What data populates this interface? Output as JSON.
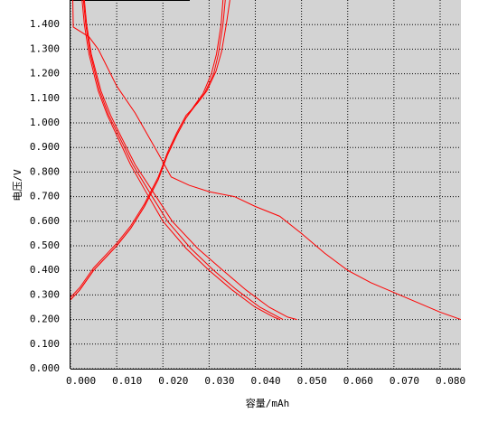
{
  "chart_data": {
    "type": "line",
    "x_label": "容量/mAh",
    "y_label": "电压/V",
    "xlim": [
      0,
      0.0845
    ],
    "ylim": [
      0,
      1.5
    ],
    "xticks": [
      {
        "value": 0,
        "label": "0.000"
      },
      {
        "value": 0.01,
        "label": "0.010"
      },
      {
        "value": 0.02,
        "label": "0.020"
      },
      {
        "value": 0.03,
        "label": "0.030"
      },
      {
        "value": 0.04,
        "label": "0.040"
      },
      {
        "value": 0.05,
        "label": "0.050"
      },
      {
        "value": 0.06,
        "label": "0.060"
      },
      {
        "value": 0.07,
        "label": "0.070"
      },
      {
        "value": 0.08,
        "label": "0.080"
      }
    ],
    "yticks": [
      {
        "value": 0,
        "label": "0.000"
      },
      {
        "value": 0.1,
        "label": "0.100"
      },
      {
        "value": 0.2,
        "label": "0.200"
      },
      {
        "value": 0.3,
        "label": "0.300"
      },
      {
        "value": 0.4,
        "label": "0.400"
      },
      {
        "value": 0.5,
        "label": "0.500"
      },
      {
        "value": 0.6,
        "label": "0.600"
      },
      {
        "value": 0.7,
        "label": "0.700"
      },
      {
        "value": 0.8,
        "label": "0.800"
      },
      {
        "value": 0.9,
        "label": "0.900"
      },
      {
        "value": 1.0,
        "label": "1.000"
      },
      {
        "value": 1.1,
        "label": "1.100"
      },
      {
        "value": 1.2,
        "label": "1.200"
      },
      {
        "value": 1.3,
        "label": "1.300"
      },
      {
        "value": 1.4,
        "label": "1.400"
      }
    ],
    "grid": true,
    "series": [
      {
        "color": "#ff0000",
        "x": [
          0,
          0.002,
          0.005,
          0.008,
          0.01,
          0.013,
          0.016,
          0.019,
          0.021,
          0.023,
          0.025,
          0.027,
          0.029,
          0.031,
          0.032,
          0.033,
          0.0335
        ],
        "values": [
          0.28,
          0.32,
          0.4,
          0.46,
          0.5,
          0.57,
          0.66,
          0.77,
          0.87,
          0.95,
          1.02,
          1.07,
          1.12,
          1.2,
          1.28,
          1.4,
          1.5
        ]
      },
      {
        "color": "#ff0000",
        "x": [
          0,
          0.002,
          0.005,
          0.008,
          0.01,
          0.013,
          0.016,
          0.019,
          0.021,
          0.023,
          0.025,
          0.0275,
          0.0295,
          0.0315,
          0.0327,
          0.0338,
          0.0345
        ],
        "values": [
          0.29,
          0.33,
          0.41,
          0.47,
          0.51,
          0.58,
          0.67,
          0.78,
          0.88,
          0.96,
          1.03,
          1.08,
          1.13,
          1.21,
          1.29,
          1.41,
          1.5
        ]
      },
      {
        "color": "#ff0000",
        "x": [
          0,
          0.002,
          0.005,
          0.008,
          0.01,
          0.013,
          0.016,
          0.019,
          0.021,
          0.023,
          0.025,
          0.0268,
          0.0287,
          0.0305,
          0.0316,
          0.0326,
          0.033
        ],
        "values": [
          0.28,
          0.32,
          0.4,
          0.46,
          0.5,
          0.57,
          0.66,
          0.77,
          0.87,
          0.95,
          1.02,
          1.07,
          1.12,
          1.2,
          1.28,
          1.4,
          1.5
        ]
      },
      {
        "color": "#ff0000",
        "x": [
          0.0005,
          0.0006,
          0.004,
          0.006,
          0.01,
          0.014,
          0.019,
          0.0218,
          0.0257,
          0.03,
          0.0355,
          0.04,
          0.0453,
          0.05,
          0.055,
          0.06,
          0.065,
          0.07,
          0.075,
          0.08,
          0.0845
        ],
        "values": [
          1.5,
          1.39,
          1.35,
          1.3,
          1.15,
          1.04,
          0.875,
          0.78,
          0.746,
          0.72,
          0.7,
          0.66,
          0.62,
          0.55,
          0.47,
          0.4,
          0.35,
          0.31,
          0.27,
          0.23,
          0.2
        ]
      },
      {
        "color": "#ff0000",
        "x": [
          0.0025,
          0.003,
          0.004,
          0.006,
          0.008,
          0.01,
          0.013,
          0.016,
          0.02,
          0.025,
          0.03,
          0.035,
          0.04,
          0.044,
          0.0453
        ],
        "values": [
          1.5,
          1.4,
          1.28,
          1.13,
          1.03,
          0.95,
          0.83,
          0.73,
          0.6,
          0.49,
          0.4,
          0.32,
          0.25,
          0.21,
          0.2
        ]
      },
      {
        "color": "#ff0000",
        "x": [
          0.0028,
          0.0033,
          0.0043,
          0.0063,
          0.0083,
          0.0104,
          0.0135,
          0.0167,
          0.021,
          0.026,
          0.031,
          0.036,
          0.041,
          0.045,
          0.046
        ],
        "values": [
          1.5,
          1.4,
          1.28,
          1.13,
          1.03,
          0.95,
          0.83,
          0.73,
          0.6,
          0.49,
          0.4,
          0.32,
          0.25,
          0.21,
          0.2
        ]
      },
      {
        "color": "#ff0000",
        "x": [
          0.003,
          0.0035,
          0.0045,
          0.0066,
          0.0087,
          0.0108,
          0.014,
          0.0175,
          0.022,
          0.0275,
          0.033,
          0.038,
          0.043,
          0.047,
          0.049
        ],
        "values": [
          1.5,
          1.4,
          1.28,
          1.13,
          1.03,
          0.95,
          0.83,
          0.73,
          0.6,
          0.49,
          0.4,
          0.32,
          0.25,
          0.21,
          0.2
        ]
      }
    ]
  }
}
